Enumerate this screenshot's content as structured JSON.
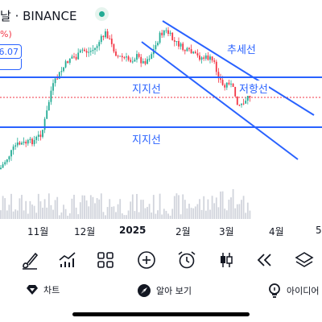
{
  "header": {
    "title": "날 · BINANCE",
    "change_pct": "%)",
    "price_tag": "6.07"
  },
  "annotations": {
    "trend_line": "추세선",
    "support_upper": "지지선",
    "resistance": "저항선",
    "support_lower": "지지선"
  },
  "x_axis": [
    "11월",
    "12월",
    "2025",
    "2월",
    "3월",
    "4월",
    "5"
  ],
  "toolbar": [
    {
      "icon": "brush-icon"
    },
    {
      "icon": "indicators-icon"
    },
    {
      "icon": "grid-icon"
    },
    {
      "icon": "add-circle-icon"
    },
    {
      "icon": "alarm-icon"
    },
    {
      "icon": "candles-icon"
    },
    {
      "icon": "rewind-icon"
    },
    {
      "icon": "layers-icon"
    }
  ],
  "bottom_bar": {
    "chart_label": "차트",
    "learn_label": "알아 보기",
    "ideas_label": "아이디어"
  },
  "colors": {
    "up": "#22ab94",
    "down": "#f23645",
    "drawing": "#2962ff",
    "volume": "#d1d4dc"
  }
}
